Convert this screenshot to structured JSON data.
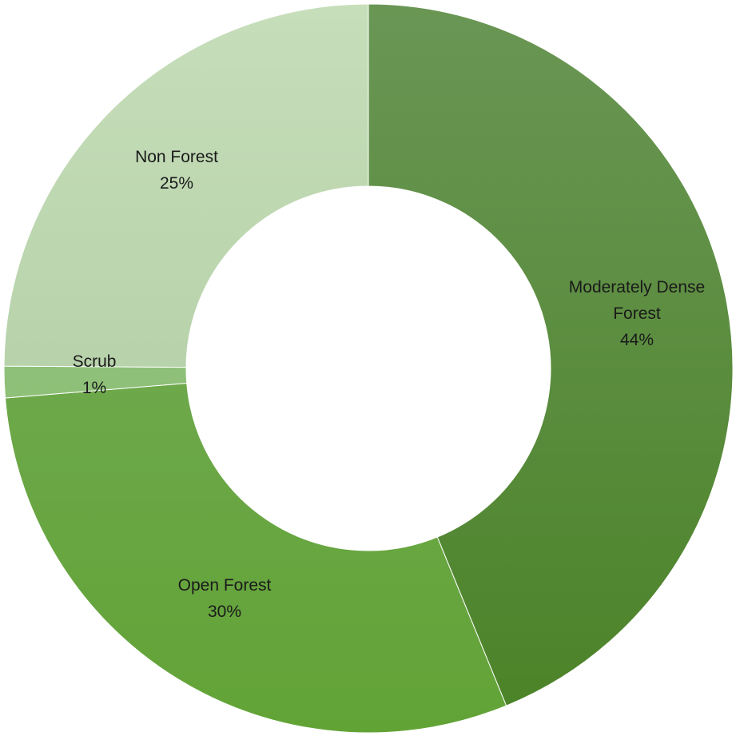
{
  "chart_data": {
    "type": "pie",
    "variant": "donut",
    "title": "",
    "slices": [
      {
        "label_lines": [
          "Moderately Dense",
          "Forest"
        ],
        "percent_label": "44%",
        "value": 44,
        "color_top": "#6a9655",
        "color_bottom": "#4b8327"
      },
      {
        "label_lines": [
          "Open Forest"
        ],
        "percent_label": "30%",
        "value": 30,
        "color_top": "#79ad60",
        "color_bottom": "#62a336"
      },
      {
        "label_lines": [
          "Scrub"
        ],
        "percent_label": "1%",
        "value": 1.4,
        "color_top": "#93c380",
        "color_bottom": "#8abe72"
      },
      {
        "label_lines": [
          "Non Forest"
        ],
        "percent_label": "25%",
        "value": 25,
        "color_top": "#c6deba",
        "color_bottom": "#a9c79b"
      }
    ],
    "start_angle_deg": 0,
    "direction": "clockwise",
    "legend": "none"
  }
}
